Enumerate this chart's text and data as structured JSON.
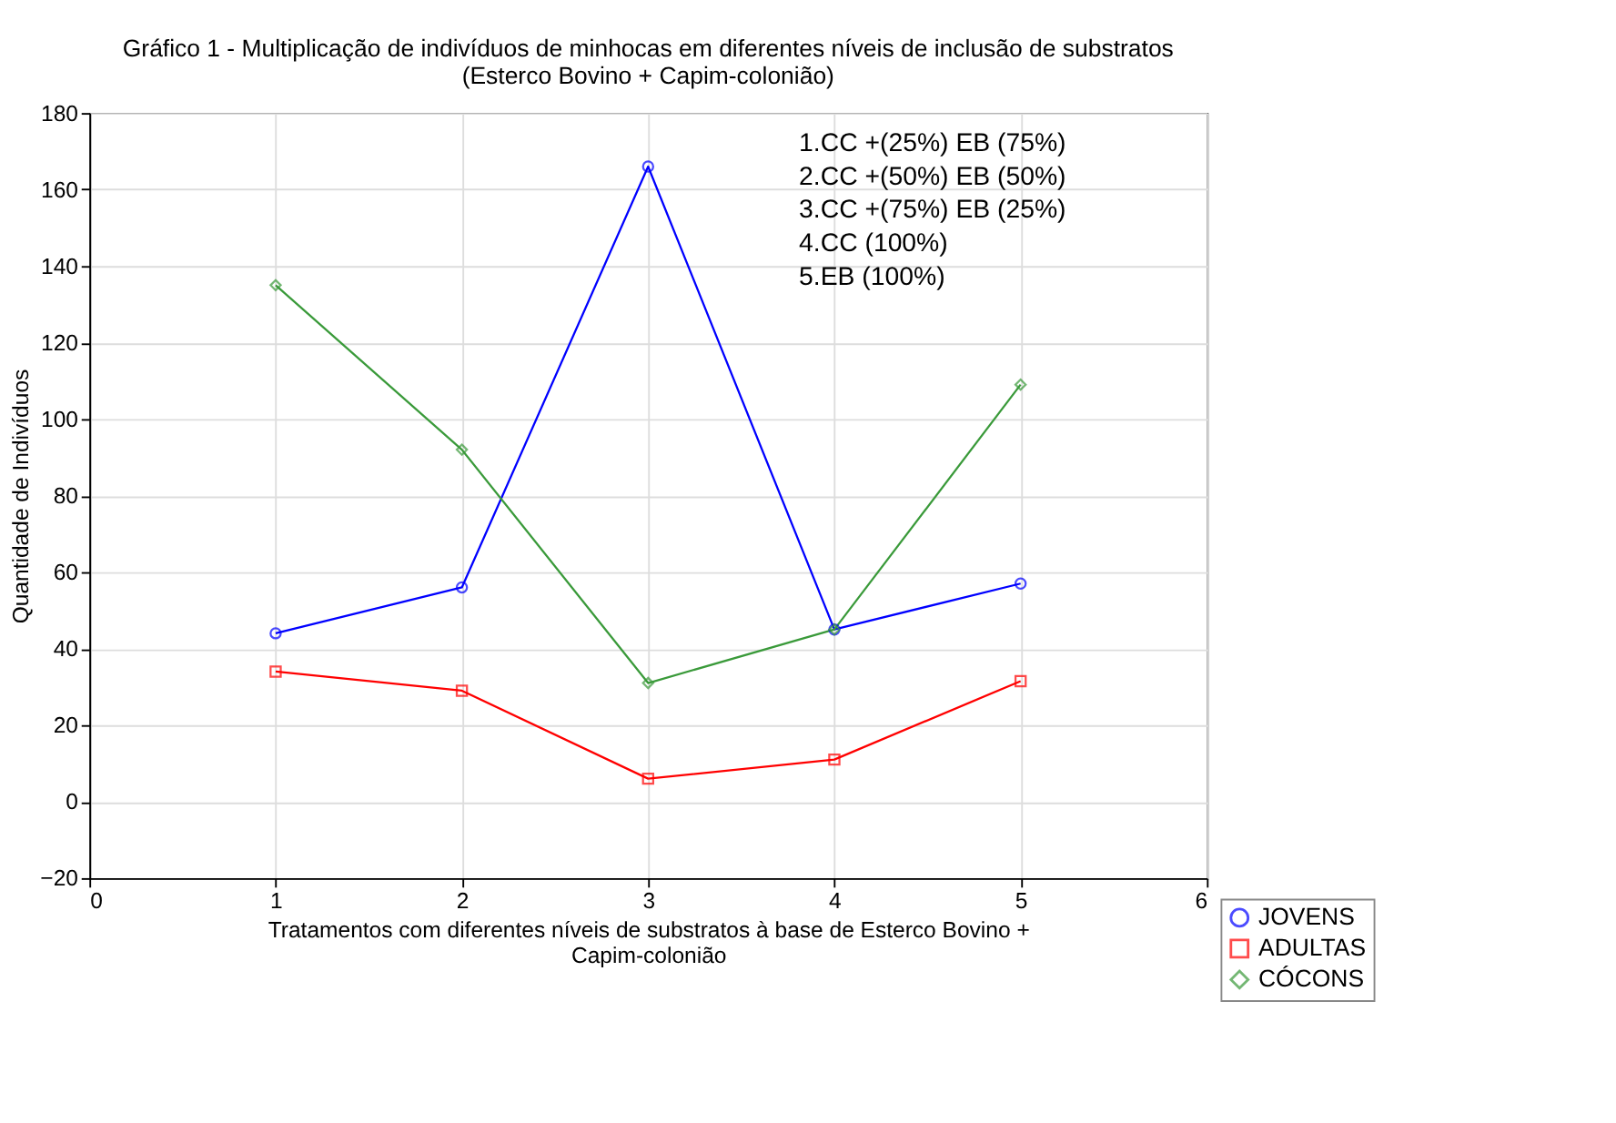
{
  "chart_data": {
    "type": "line",
    "title": "Gráfico 1 - Multiplicação de indivíduos de minhocas em diferentes níveis de inclusão de substratos",
    "subtitle": "(Esterco Bovino + Capim-colonião)",
    "xlabel": "Tratamentos com diferentes níveis de substratos à base de Esterco Bovino + Capim-colonião",
    "ylabel": "Quantidade de Indivíduos",
    "x": [
      1,
      2,
      3,
      4,
      5
    ],
    "series": [
      {
        "name": "JOVENS",
        "color": "#0000ff",
        "marker": "circle",
        "values": [
          44,
          56,
          166,
          45,
          57
        ]
      },
      {
        "name": "ADULTAS",
        "color": "#ff0000",
        "marker": "square",
        "values": [
          34,
          29,
          6,
          11,
          31.5
        ]
      },
      {
        "name": "CÓCONS",
        "color": "#3a9a3a",
        "marker": "diamond",
        "values": [
          135,
          92,
          31,
          45,
          109
        ]
      }
    ],
    "annotations": [
      "1.CC +(25%) EB (75%)",
      "2.CC +(50%) EB (50%)",
      "3.CC +(75%) EB (25%)",
      "4.CC (100%)",
      "5.EB (100%)"
    ],
    "xlim": [
      0,
      6
    ],
    "xticks": [
      0,
      1,
      2,
      3,
      4,
      5,
      6
    ],
    "ylim": [
      -20,
      180
    ],
    "yticks": [
      -20,
      0,
      20,
      40,
      60,
      80,
      100,
      120,
      140,
      160,
      180
    ],
    "grid": true,
    "legend": "bottom right",
    "line_style": "solid"
  }
}
